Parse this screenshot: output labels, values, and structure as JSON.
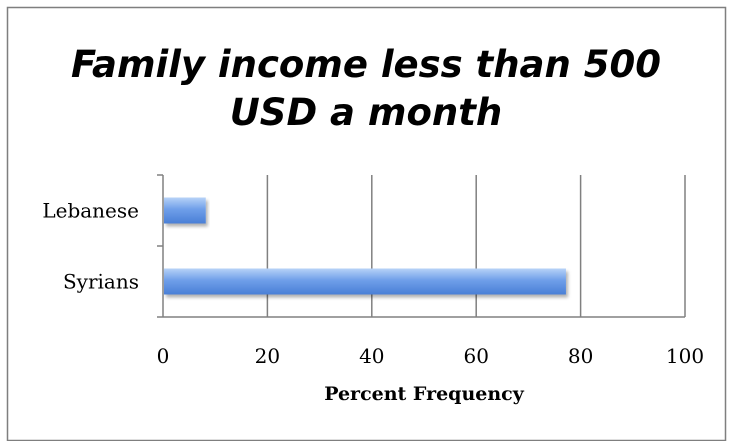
{
  "chart_data": {
    "type": "bar",
    "orientation": "horizontal",
    "title_lines": [
      "Family income less than 500",
      "USD a month"
    ],
    "categories": [
      "Lebanese",
      "Syrians"
    ],
    "values": [
      8,
      77
    ],
    "xlabel": "Percent Frequency",
    "ylabel": "",
    "xlim": [
      0,
      100
    ],
    "x_ticks": [
      0,
      20,
      40,
      60,
      80,
      100
    ],
    "x_tick_labels": [
      "0",
      "20",
      "40",
      "60",
      "80",
      "100"
    ],
    "grid": "vertical",
    "legend": "none",
    "colors": {
      "bar_light": "#b7d2f7",
      "bar_mid": "#6f9fe9",
      "bar_dark": "#4a7fd6",
      "grid": "#808080",
      "frame": "#7f7f7f"
    }
  }
}
